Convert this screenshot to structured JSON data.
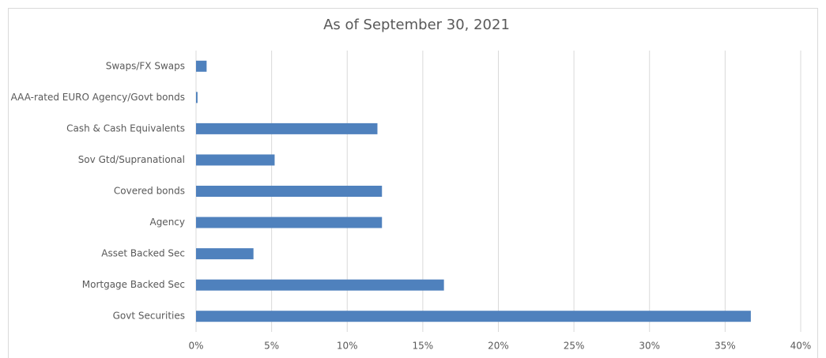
{
  "chart_data": {
    "type": "hbar",
    "title": "As of September 30, 2021",
    "categories": [
      "Swaps/FX Swaps",
      "AAA-rated EURO Agency/Govt bonds",
      "Cash & Cash Equivalents",
      "Sov Gtd/Supranational",
      "Covered bonds",
      "Agency",
      "Asset Backed Sec",
      "Mortgage Backed Sec",
      "Govt Securities"
    ],
    "values": [
      0.7,
      0.1,
      12.0,
      5.2,
      12.3,
      12.3,
      3.8,
      16.4,
      36.7
    ],
    "color": "#4f81bd",
    "xlim": [
      0,
      40
    ],
    "xticks": [
      {
        "value": 0,
        "label": "0%"
      },
      {
        "value": 5,
        "label": "5%"
      },
      {
        "value": 10,
        "label": "10%"
      },
      {
        "value": 15,
        "label": "15%"
      },
      {
        "value": 20,
        "label": "20%"
      },
      {
        "value": 25,
        "label": "25%"
      },
      {
        "value": 30,
        "label": "30%"
      },
      {
        "value": 35,
        "label": "35%"
      },
      {
        "value": 40,
        "label": "40%"
      }
    ],
    "grid": true
  }
}
